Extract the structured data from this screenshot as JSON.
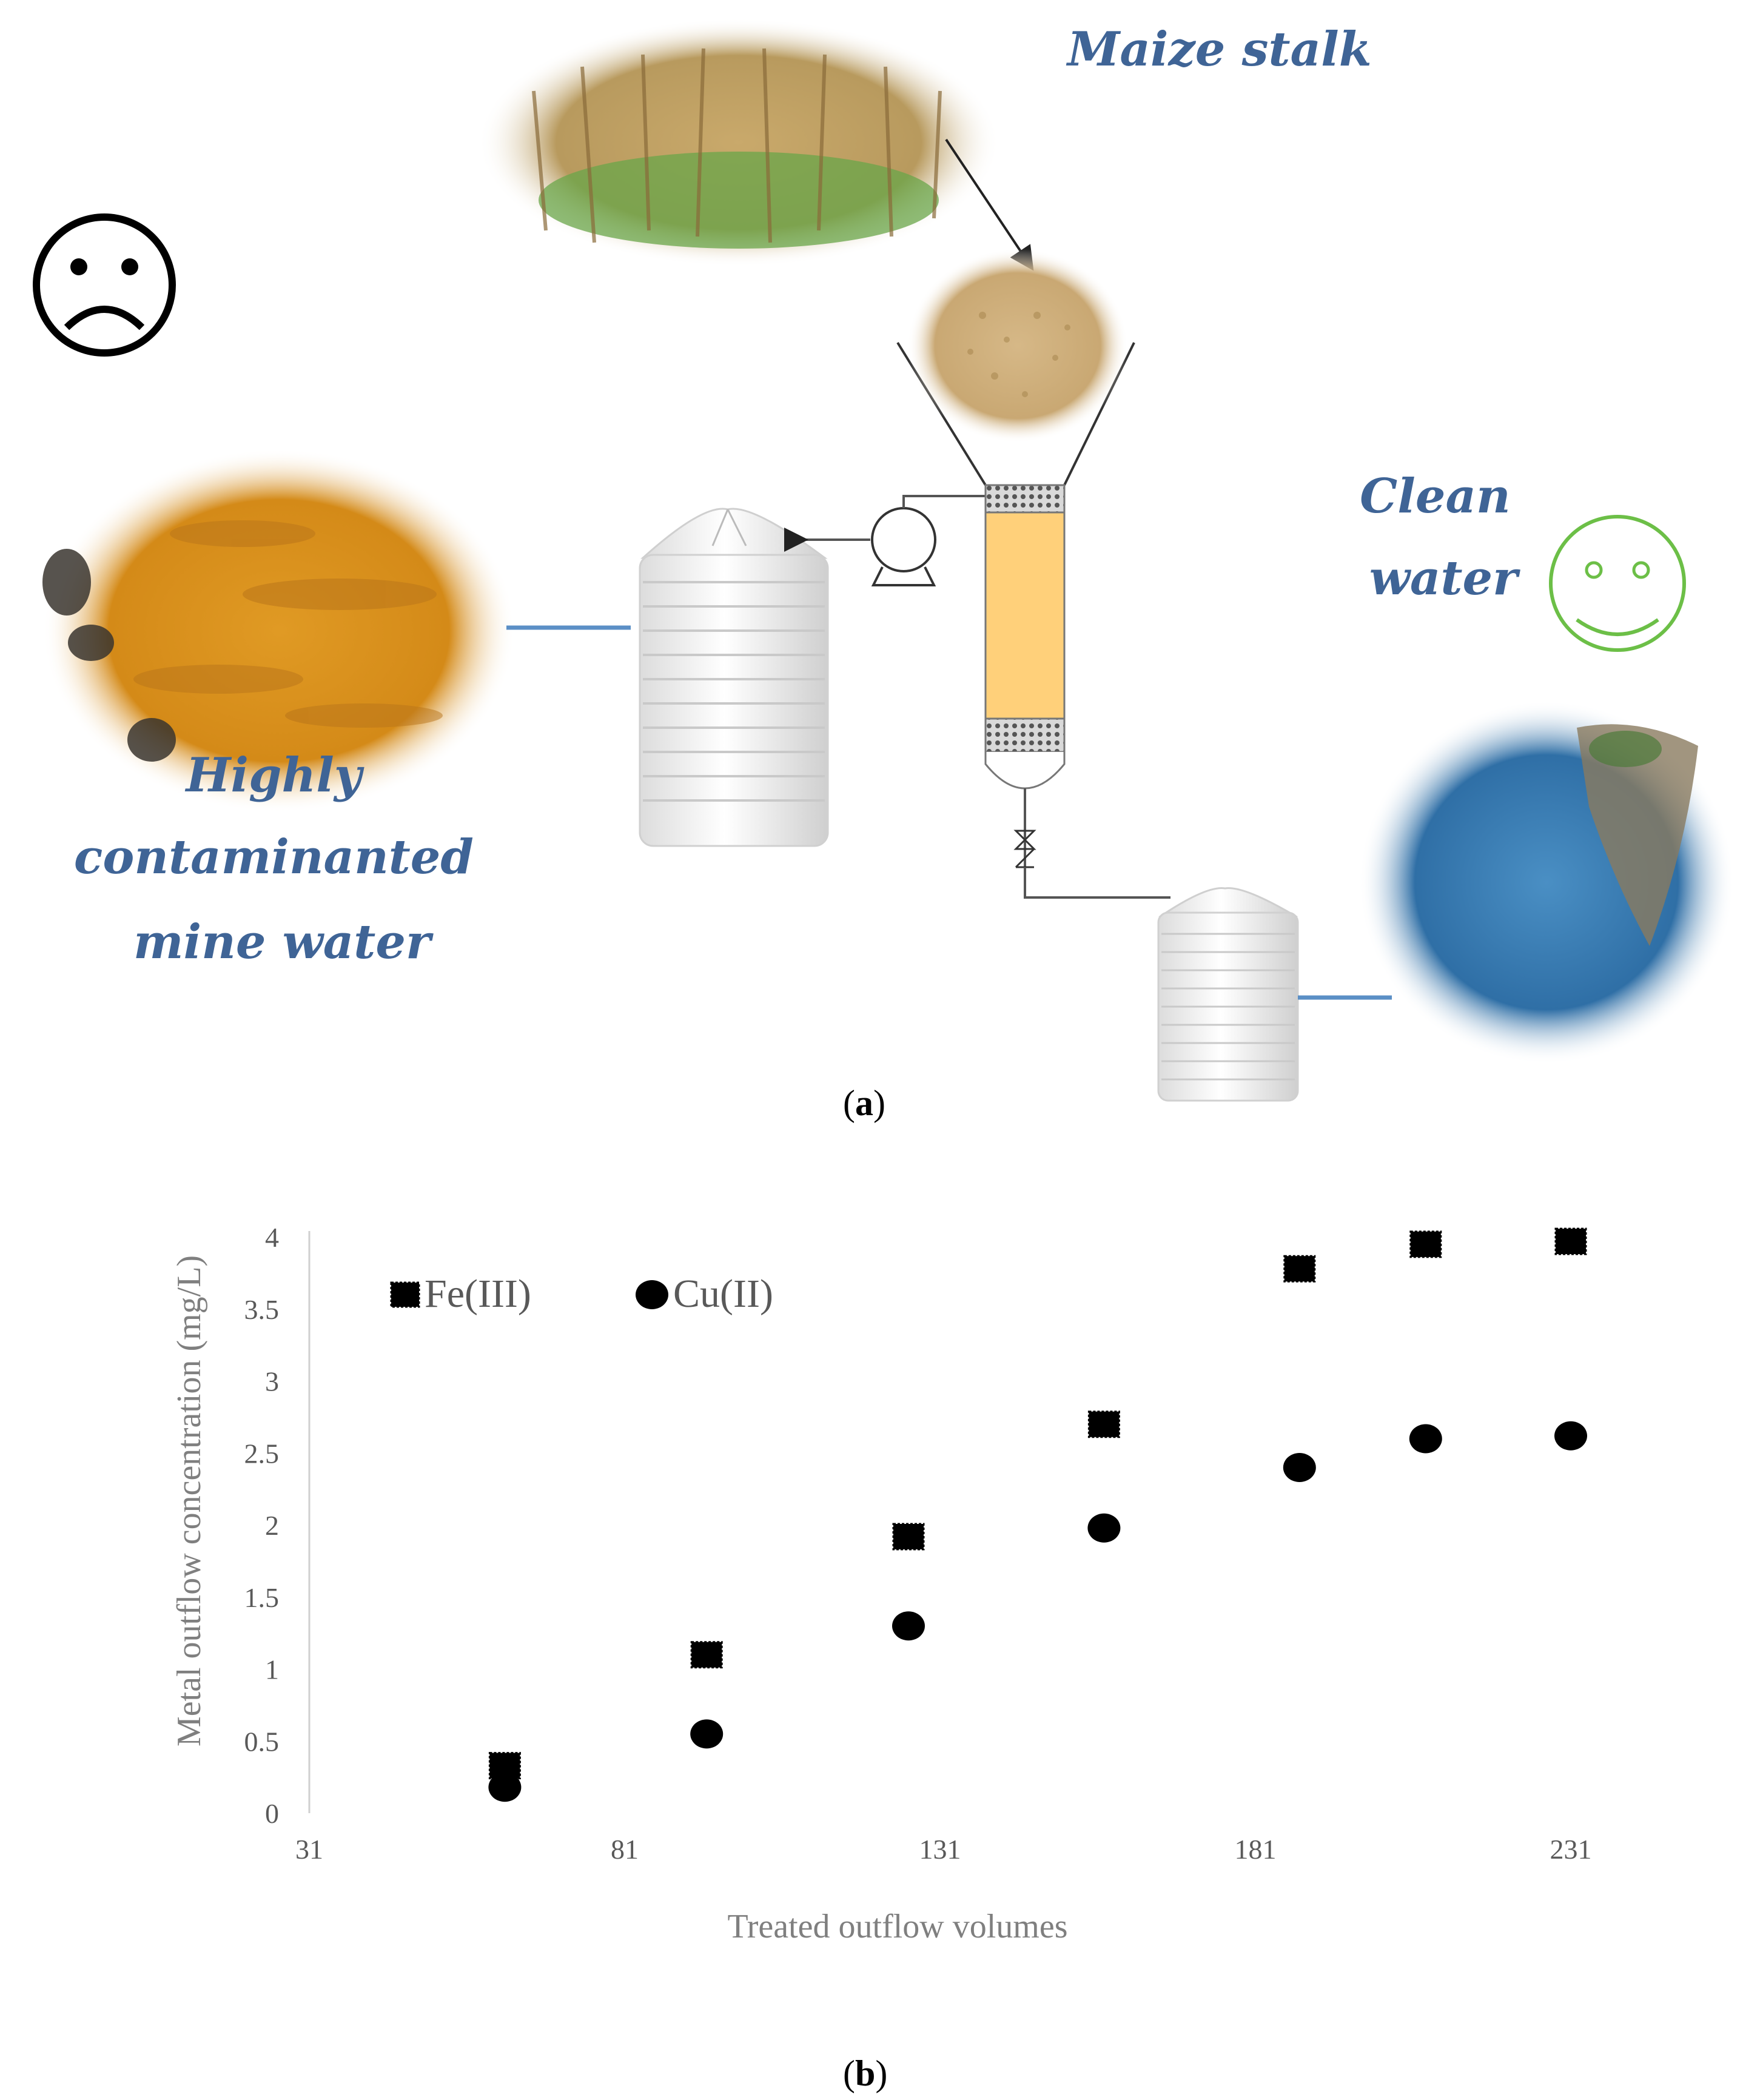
{
  "diagram": {
    "labels": {
      "maize_stalk": "Maize stalk",
      "mine_water_line1": "Highly",
      "mine_water_line2": "contaminanted",
      "mine_water_line3": "mine water",
      "clean_water_line1": "Clean",
      "clean_water_line2": "water"
    },
    "panel_a": {
      "open": "(",
      "letter": "a",
      "close": ")"
    },
    "icons": [
      "sad-face-icon",
      "happy-face-icon",
      "pump-icon",
      "valve-icon"
    ],
    "colors": {
      "label_blue": "#3f6496",
      "mine_water": "#d9911e",
      "clean_water": "#3a7eb5",
      "column_fill": "#ffd07a",
      "happy_face": "#6cbf47",
      "pipe_blue": "#5b8fc6"
    }
  },
  "chart_data": {
    "type": "scatter",
    "title": "",
    "xlabel": "Treated outflow volumes",
    "ylabel": "Metal outflow concentration (mg/L)",
    "xlim": [
      31,
      231
    ],
    "ylim": [
      0,
      4
    ],
    "xticks": [
      "31",
      "81",
      "131",
      "181",
      "231"
    ],
    "yticks": [
      "0",
      "0.5",
      "1",
      "1.5",
      "2",
      "2.5",
      "3",
      "3.5",
      "4"
    ],
    "legend_position": "top-left",
    "series": [
      {
        "name": "Fe(III)",
        "marker": "square",
        "x": [
          62,
          94,
          126,
          157,
          188,
          208,
          231
        ],
        "y": [
          0.33,
          1.1,
          1.92,
          2.7,
          3.78,
          3.95,
          3.97
        ]
      },
      {
        "name": "Cu(II)",
        "marker": "circle",
        "x": [
          62,
          94,
          126,
          157,
          188,
          208,
          231
        ],
        "y": [
          0.18,
          0.55,
          1.3,
          1.98,
          2.4,
          2.6,
          2.62
        ]
      }
    ]
  },
  "panel_b": {
    "open": "(",
    "letter": "b",
    "close": ")"
  }
}
